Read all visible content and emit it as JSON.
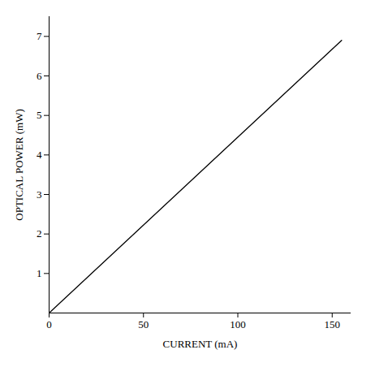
{
  "chart_data": {
    "type": "line",
    "x_label": "CURRENT (mA)",
    "y_label": "OPTICAL POWER (mW)",
    "x": [
      0,
      155
    ],
    "values": [
      0,
      6.9
    ],
    "color": "#000000",
    "xlim": [
      0,
      160
    ],
    "xticks": [
      0,
      50,
      100,
      150
    ],
    "ylim": [
      0,
      7.5
    ],
    "yticks": [
      1,
      2,
      3,
      4,
      5,
      6,
      7
    ],
    "grid": false
  }
}
